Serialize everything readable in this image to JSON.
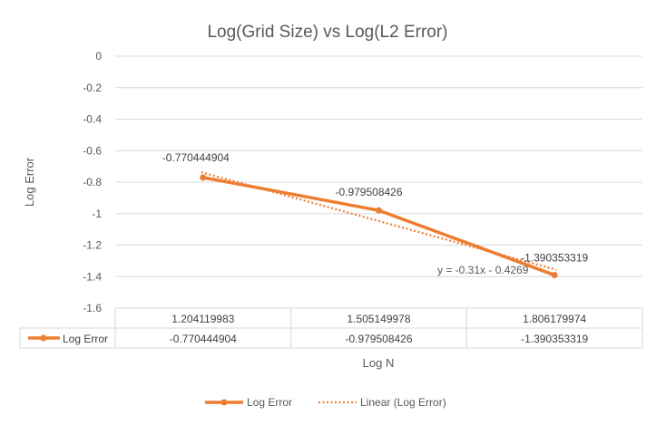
{
  "colors": {
    "series": "#ED7D31",
    "grid": "#D9D9D9",
    "text": "#595959"
  },
  "chart_data": {
    "type": "line",
    "title": "Log(Grid Size) vs Log(L2 Error)",
    "xlabel": "Log N",
    "ylabel": "Log Error",
    "ylim": [
      -1.6,
      0
    ],
    "ytick_step": 0.2,
    "yticks": [
      "0",
      "-0.2",
      "-0.4",
      "-0.6",
      "-0.8",
      "-1",
      "-1.2",
      "-1.4",
      "-1.6"
    ],
    "categories": [
      "1.204119983",
      "1.505149978",
      "1.806179974"
    ],
    "series": [
      {
        "name": "Log Error",
        "values": [
          -0.770444904,
          -0.979508426,
          -1.390353319
        ],
        "labels": [
          "-0.770444904",
          "-0.979508426",
          "-1.390353319"
        ]
      }
    ],
    "trendline": {
      "name": "Linear (Log Error)",
      "slope": -0.31,
      "intercept": -0.4269,
      "equation": "y = -0.31x - 0.4269"
    },
    "data_table": true,
    "grid": true,
    "legend": "bottom"
  }
}
